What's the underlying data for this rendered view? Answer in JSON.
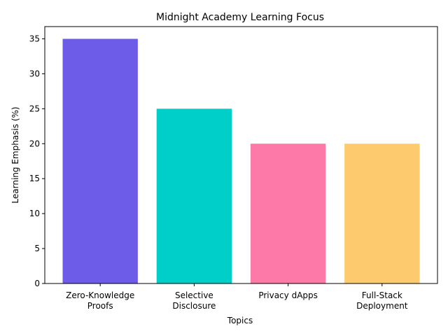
{
  "chart_data": {
    "type": "bar",
    "title": "Midnight Academy Learning Focus",
    "xlabel": "Topics",
    "ylabel": "Learning Emphasis (%)",
    "categories": [
      [
        "Zero-Knowledge",
        "Proofs"
      ],
      [
        "Selective",
        "Disclosure"
      ],
      [
        "Privacy dApps"
      ],
      [
        "Full-Stack",
        "Deployment"
      ]
    ],
    "values": [
      35,
      25,
      20,
      20
    ],
    "colors": [
      "#6c5ce7",
      "#00cec9",
      "#fd79a8",
      "#fdcb6e"
    ],
    "ylim": [
      0,
      36.75
    ],
    "yticks": [
      0,
      5,
      10,
      15,
      20,
      25,
      30,
      35
    ],
    "grid": false,
    "legend": "none"
  }
}
